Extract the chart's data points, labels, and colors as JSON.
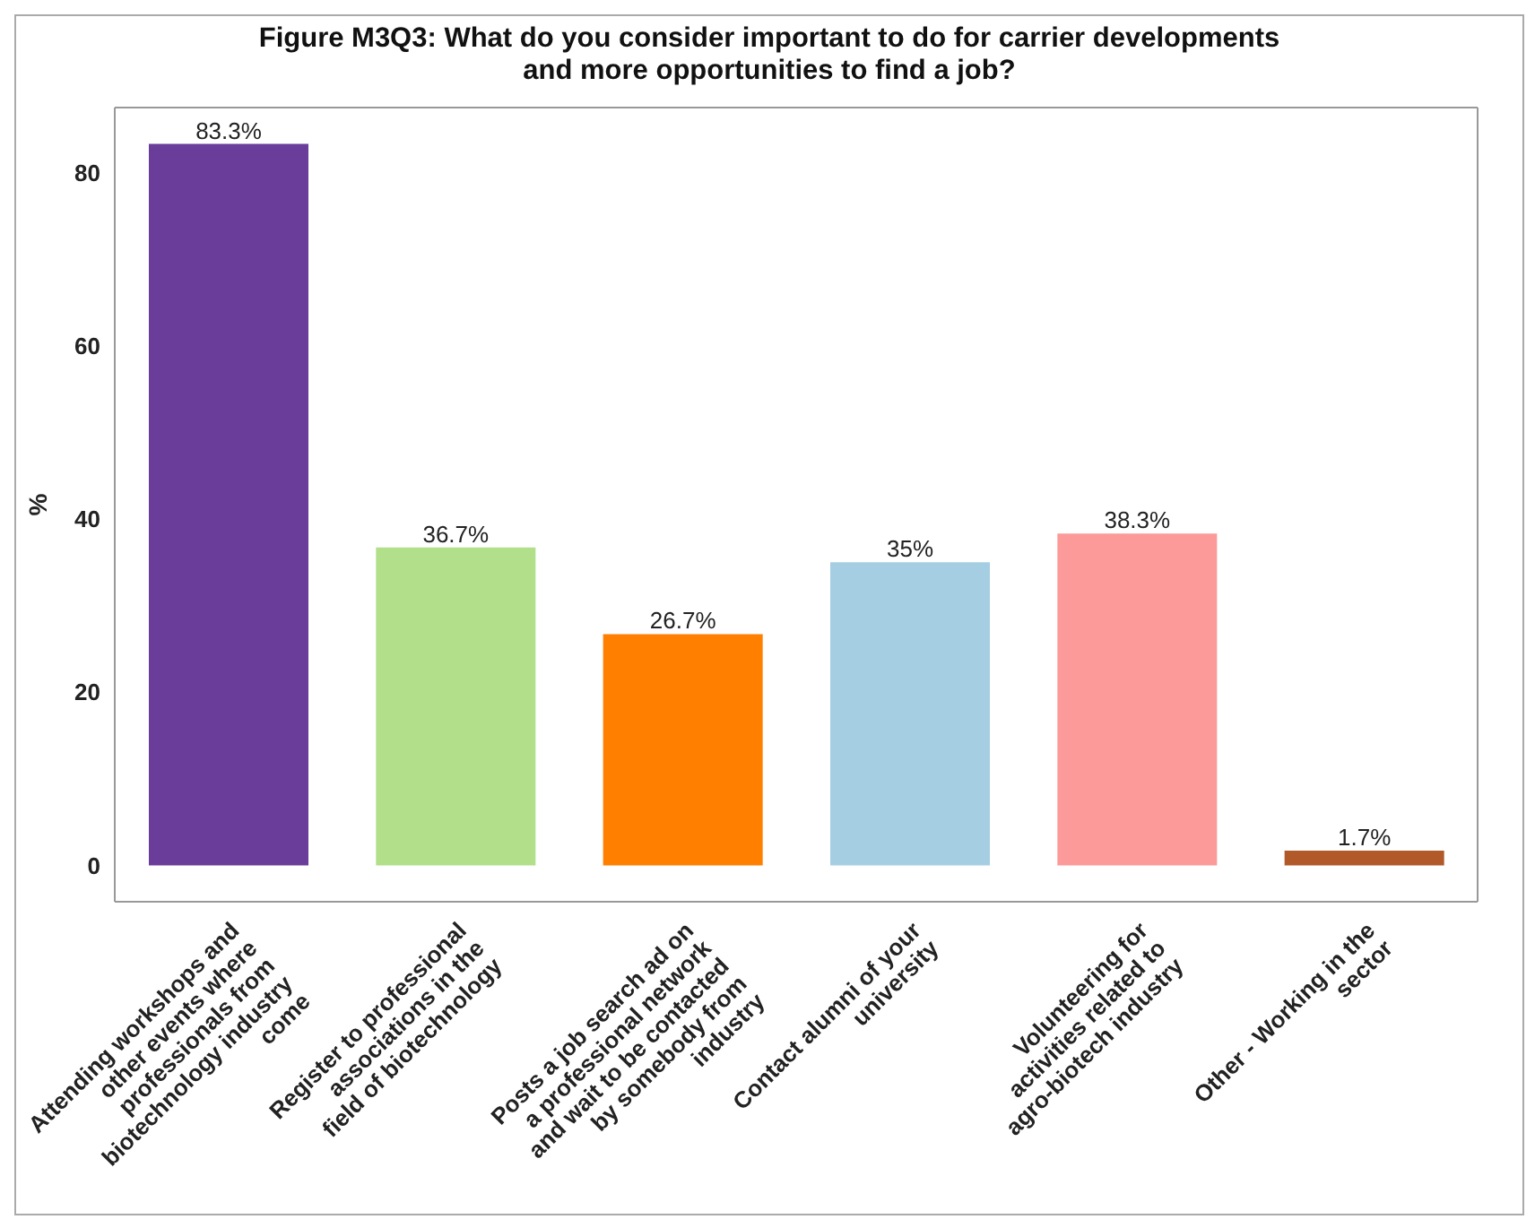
{
  "chart_data": {
    "type": "bar",
    "title": "Figure M3Q3: What do you consider important to do for carrier developments and more opportunities to find a job?",
    "ylabel": "%",
    "categories": [
      "Attending workshops and other events where professionals from biotechnology industry come",
      "Register to professional associations in the field of biotechnology",
      "Posts a job search ad on a professional network and wait to be contacted by somebody from industry",
      "Contact alumni of your university",
      "Volunteering for activities related to agro-biotech industry",
      "Other - Working in the sector"
    ],
    "values": [
      83.3,
      36.7,
      26.7,
      35,
      38.3,
      1.7
    ],
    "value_labels": [
      "83.3%",
      "36.7%",
      "26.7%",
      "35%",
      "38.3%",
      "1.7%"
    ],
    "colors": [
      "#6a3d9a",
      "#b2df8a",
      "#ff7f00",
      "#a6cee3",
      "#fb9a99",
      "#b15928"
    ],
    "ylim": [
      -4.2,
      87.5
    ],
    "yticks": [
      0,
      20,
      40,
      60,
      80
    ],
    "grid": false
  }
}
